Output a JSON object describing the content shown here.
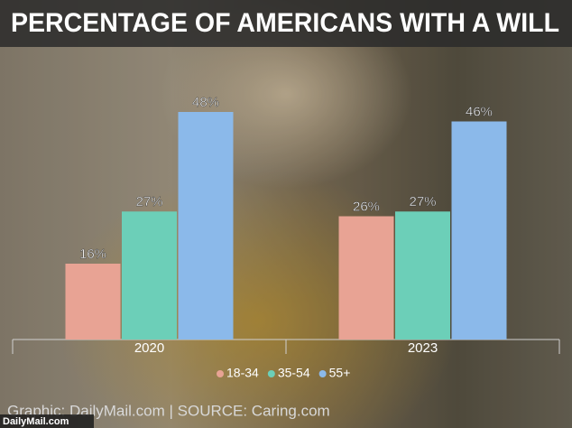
{
  "chart_data": {
    "type": "bar",
    "title": "PERCENTAGE OF AMERICANS WITH A WILL",
    "categories": [
      "2020",
      "2023"
    ],
    "series": [
      {
        "name": "18-34",
        "color": "#e8a394",
        "values": [
          16,
          26
        ],
        "value_labels": [
          "16%",
          "26%"
        ]
      },
      {
        "name": "35-54",
        "color": "#6ccfb8",
        "values": [
          27,
          27
        ],
        "value_labels": [
          "27%",
          "27%"
        ]
      },
      {
        "name": "55+",
        "color": "#8bb9ea",
        "values": [
          48,
          46
        ],
        "value_labels": [
          "48%",
          "46%"
        ]
      }
    ],
    "source": "Graphic: DailyMail.com | SOURCE: Caring.com",
    "watermark": "DailyMail.com"
  }
}
